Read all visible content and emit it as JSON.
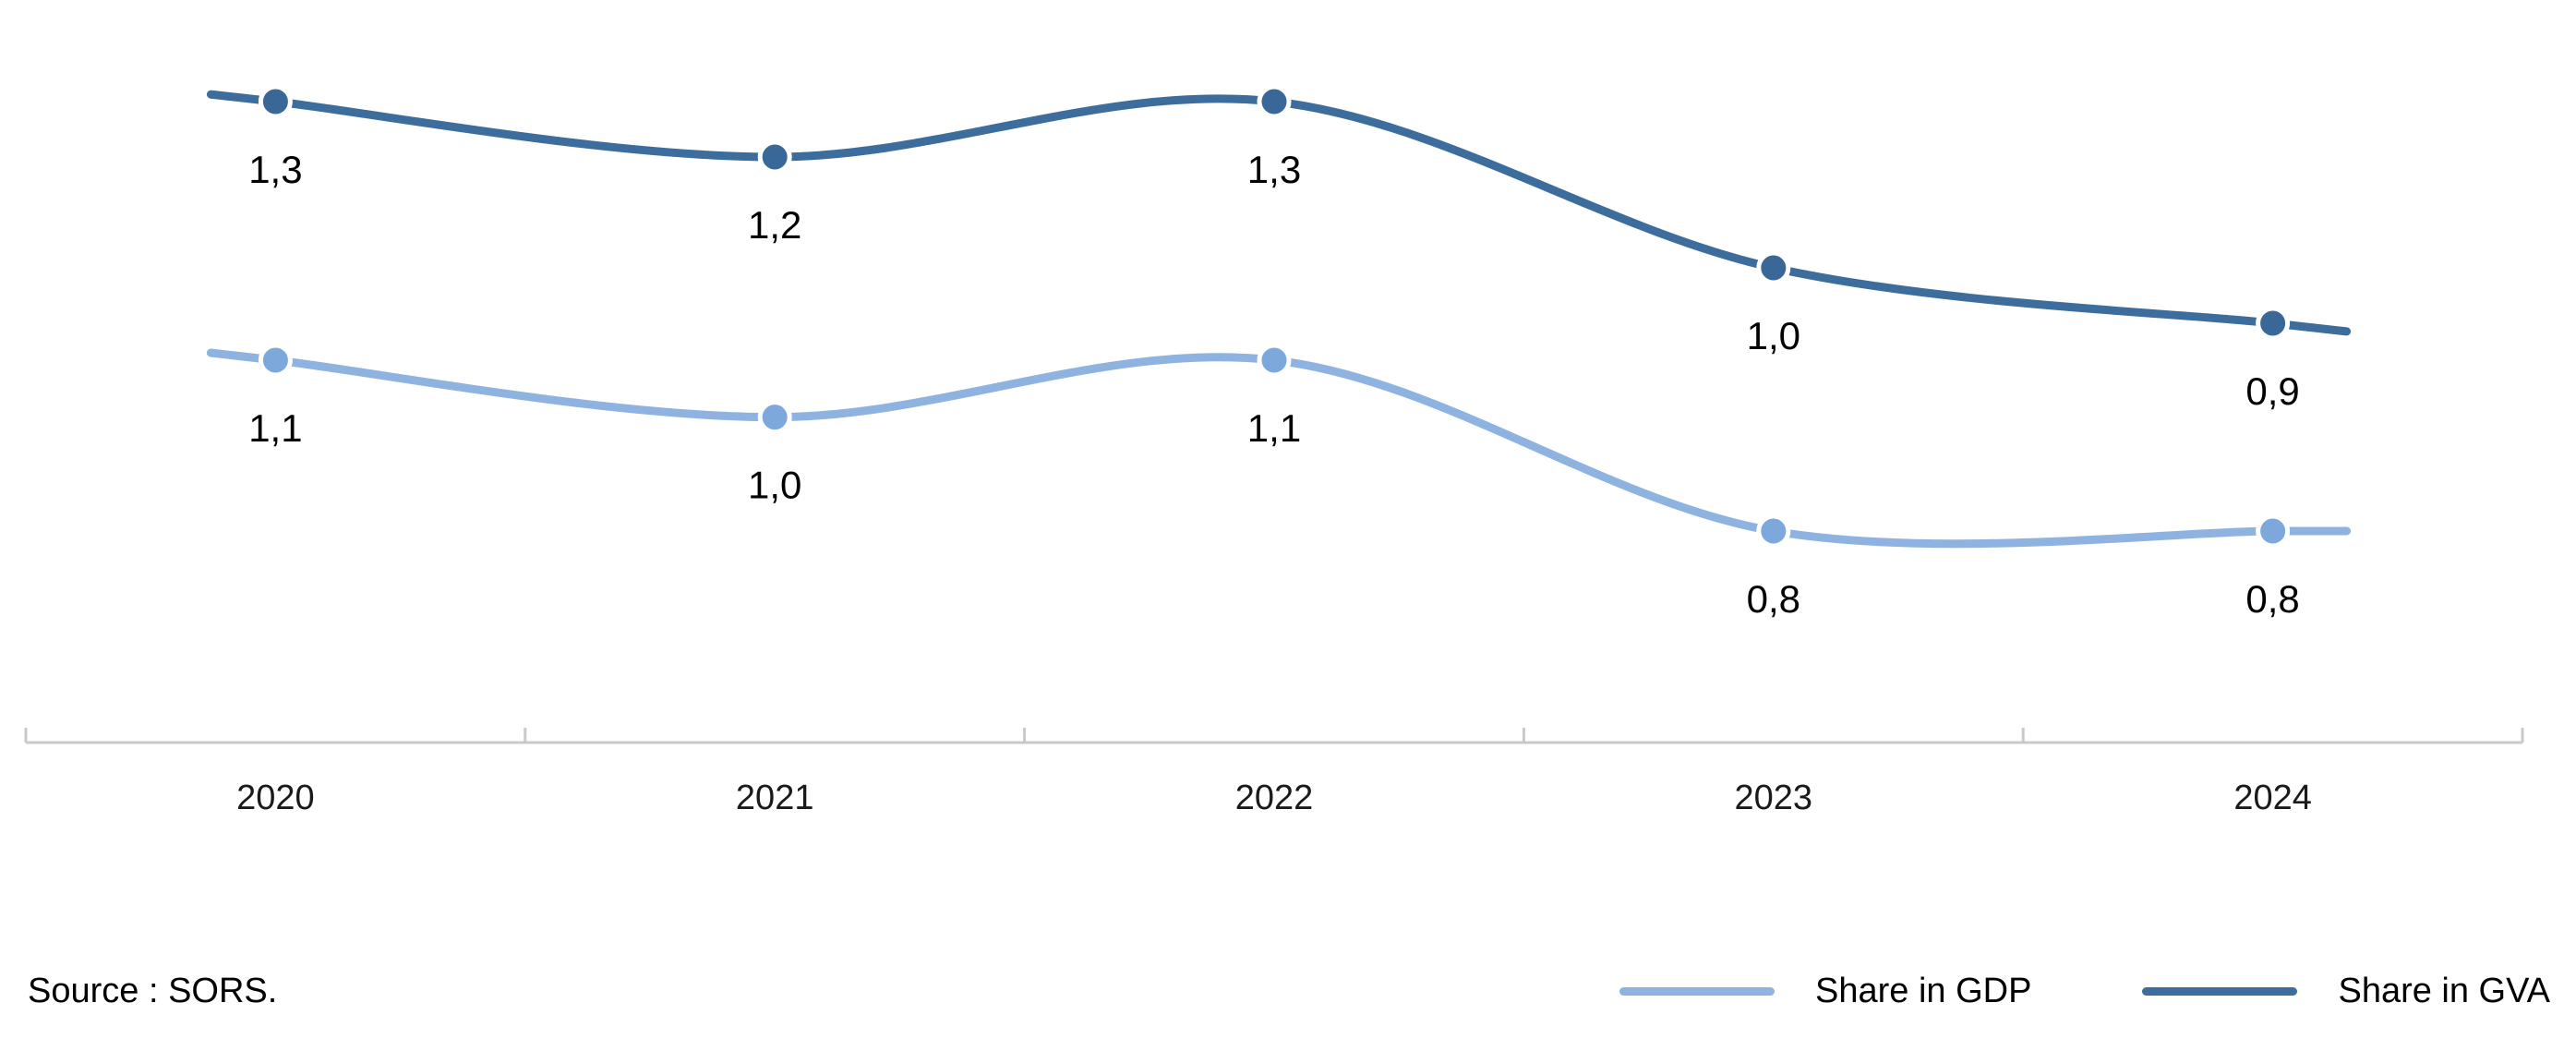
{
  "chart_data": {
    "type": "line",
    "title": "",
    "categories": [
      "2020",
      "2021",
      "2022",
      "2023",
      "2024"
    ],
    "series": [
      {
        "name": "Share in GDP",
        "values": [
          1.1,
          1.0,
          1.1,
          0.8,
          0.8
        ],
        "labels": [
          "1,1",
          "1,0",
          "1,1",
          "0,8",
          "0,8"
        ],
        "color": "#8fb3e1",
        "point_color": "#7da8db"
      },
      {
        "name": "Share in GVA",
        "values": [
          1.3,
          1.2,
          1.3,
          1.0,
          0.9
        ],
        "labels": [
          "1,3",
          "1,2",
          "1,3",
          "1,0",
          "0,9"
        ],
        "color": "#3c6d9c",
        "point_color": "#396898"
      }
    ],
    "xlabel": "",
    "ylabel": "",
    "grid": false,
    "legend_position": "bottom-right",
    "axis_color": "#c9c9c9",
    "label_color": "#000000",
    "tick_label_color": "#1a1a1a"
  },
  "source": {
    "text": "Source : SORS."
  }
}
